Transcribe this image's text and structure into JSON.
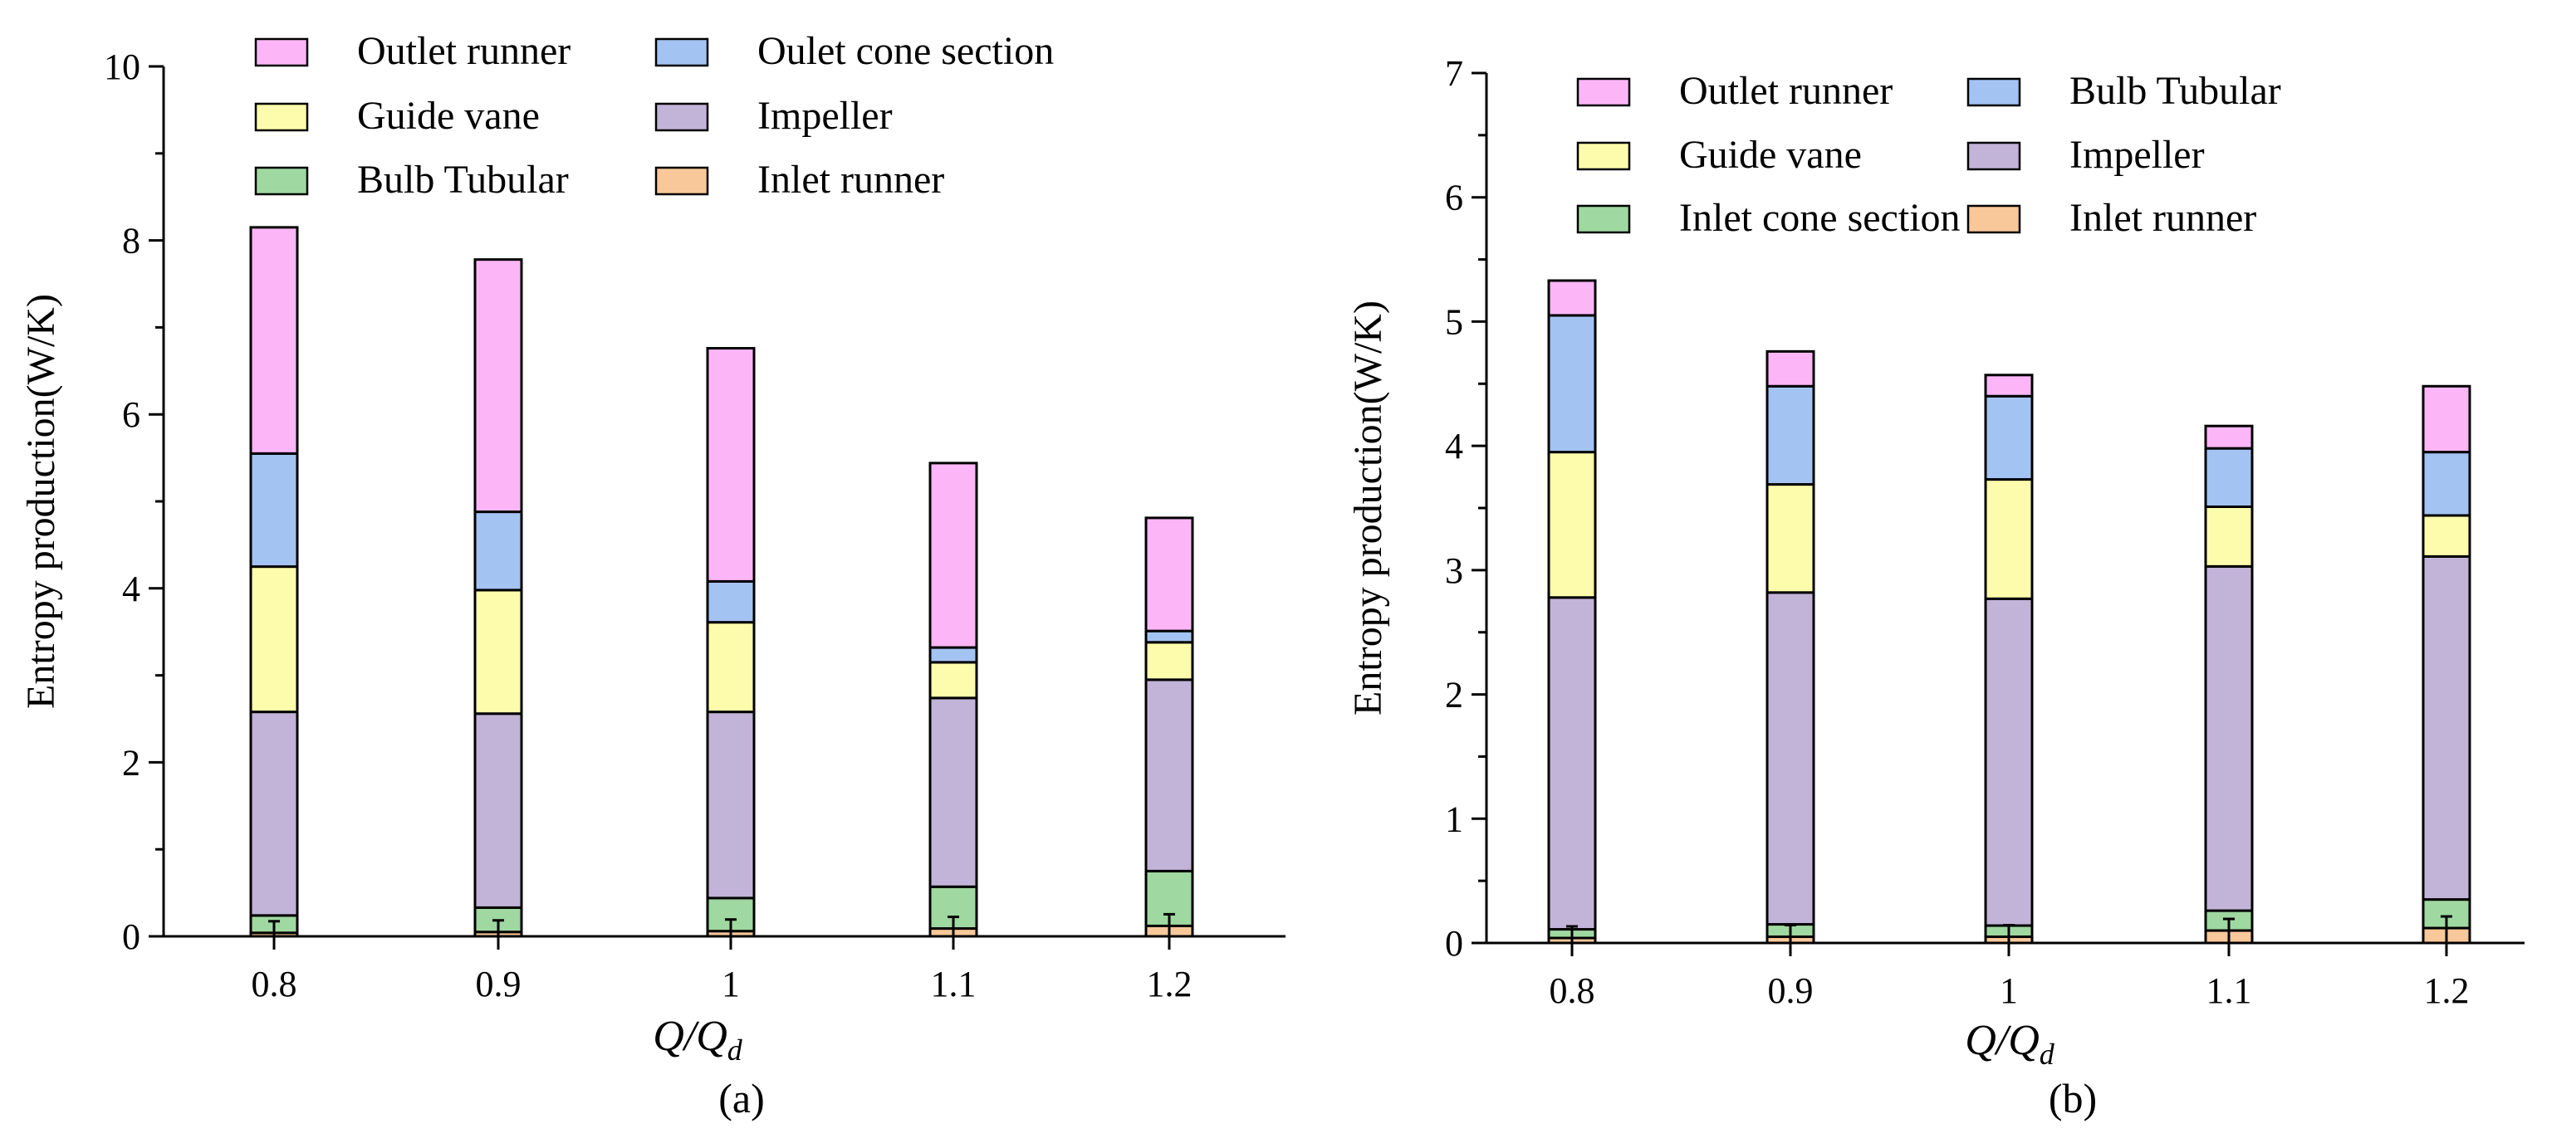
{
  "chart_data": [
    {
      "type": "bar",
      "stacked": true,
      "panel": "(a)",
      "caption": "(a)",
      "ylabel": "Entropy production(W/K)",
      "xlabel_main": "Q/Q",
      "xlabel_sub": "d",
      "ylim": [
        0,
        10
      ],
      "yticks": [
        "0",
        "2",
        "4",
        "6",
        "8",
        "10"
      ],
      "categories": [
        "0.8",
        "0.9",
        "1",
        "1.1",
        "1.2"
      ],
      "legend_position": "top",
      "series": [
        {
          "name": "Inlet runner",
          "color": "#f8c89a",
          "values": [
            0.04,
            0.05,
            0.06,
            0.09,
            0.12
          ]
        },
        {
          "name": "Bulb Tubular",
          "color": "#9fd8a0",
          "values": [
            0.2,
            0.28,
            0.38,
            0.48,
            0.63
          ]
        },
        {
          "name": "Impeller",
          "color": "#c2b3d8",
          "values": [
            2.34,
            2.23,
            2.14,
            2.17,
            2.2
          ]
        },
        {
          "name": "Guide vane",
          "color": "#fcfcac",
          "values": [
            1.67,
            1.42,
            1.03,
            0.41,
            0.43
          ]
        },
        {
          "name": "Oulet cone section",
          "color": "#a3c3f2",
          "values": [
            1.3,
            0.9,
            0.47,
            0.17,
            0.13
          ]
        },
        {
          "name": "Outlet runner",
          "color": "#fcb6f7",
          "values": [
            2.6,
            2.9,
            2.68,
            2.12,
            1.3
          ]
        }
      ],
      "legend_order": [
        "Outlet runner",
        "Oulet cone section",
        "Guide vane",
        "Impeller",
        "Bulb Tubular",
        "Inlet runner"
      ]
    },
    {
      "type": "bar",
      "stacked": true,
      "panel": "(b)",
      "caption": "(b)",
      "ylabel": "Entropy production(W/K)",
      "xlabel_main": "Q/Q",
      "xlabel_sub": "d",
      "ylim": [
        0,
        7
      ],
      "yticks": [
        "0",
        "1",
        "2",
        "3",
        "4",
        "5",
        "6",
        "7"
      ],
      "categories": [
        "0.8",
        "0.9",
        "1",
        "1.1",
        "1.2"
      ],
      "legend_position": "top",
      "series": [
        {
          "name": "Inlet runner",
          "color": "#f8c89a",
          "values": [
            0.04,
            0.05,
            0.05,
            0.1,
            0.12
          ]
        },
        {
          "name": "Inlet cone section",
          "color": "#9fd8a0",
          "values": [
            0.07,
            0.1,
            0.09,
            0.16,
            0.23
          ]
        },
        {
          "name": "Impeller",
          "color": "#c2b3d8",
          "values": [
            2.67,
            2.67,
            2.63,
            2.77,
            2.76
          ]
        },
        {
          "name": "Guide vane",
          "color": "#fcfcac",
          "values": [
            1.17,
            0.87,
            0.96,
            0.48,
            0.33
          ]
        },
        {
          "name": "Bulb Tubular",
          "color": "#a3c3f2",
          "values": [
            1.1,
            0.79,
            0.67,
            0.47,
            0.51
          ]
        },
        {
          "name": "Outlet runner",
          "color": "#fcb6f7",
          "values": [
            0.28,
            0.28,
            0.17,
            0.18,
            0.53
          ]
        }
      ],
      "legend_order": [
        "Outlet runner",
        "Bulb Tubular",
        "Guide vane",
        "Impeller",
        "Inlet cone section",
        "Inlet runner"
      ]
    }
  ]
}
